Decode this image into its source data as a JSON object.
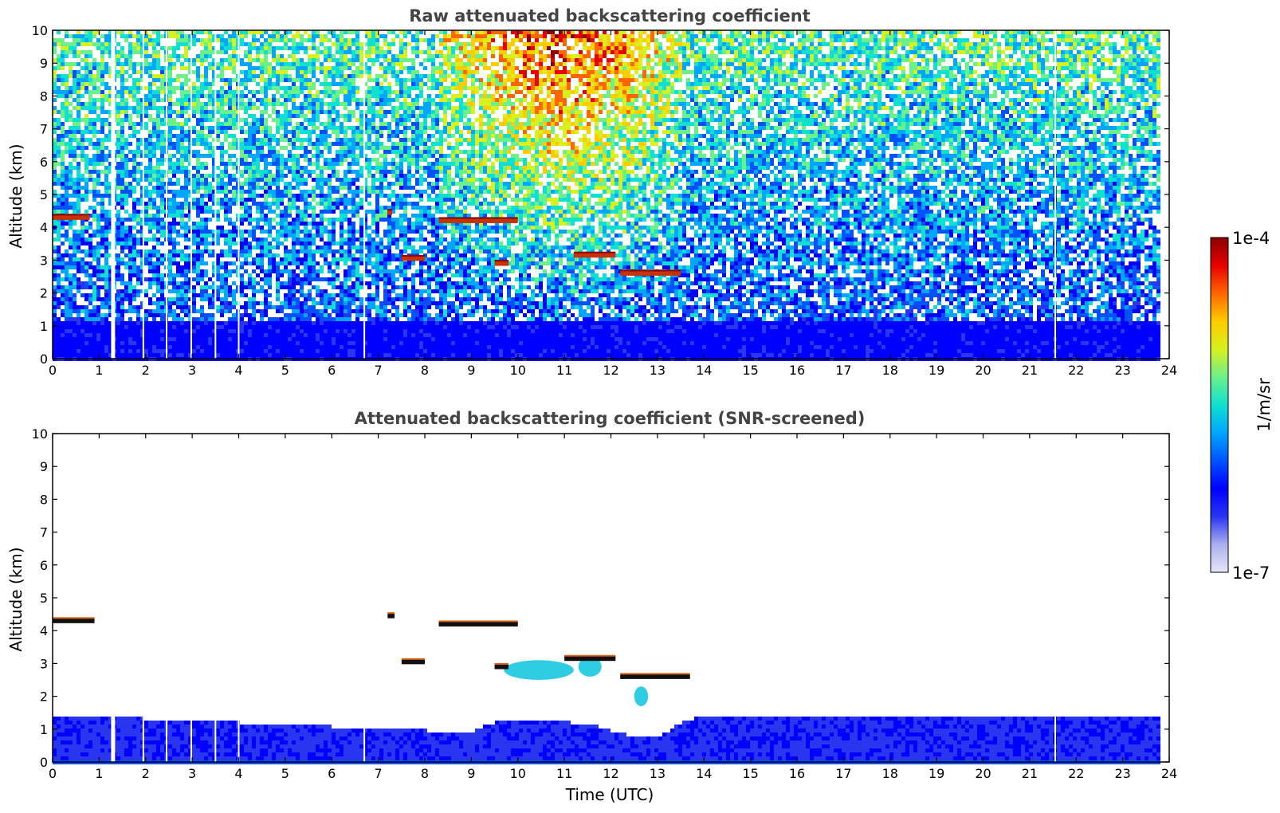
{
  "chart_data": [
    {
      "type": "heatmap",
      "title": "Raw attenuated backscattering coefficient",
      "xlabel": "",
      "ylabel": "Altitude (km)",
      "xlim": [
        0,
        24
      ],
      "ylim": [
        0,
        10
      ],
      "xticks": [
        0,
        1,
        2,
        3,
        4,
        5,
        6,
        7,
        8,
        9,
        10,
        11,
        12,
        13,
        14,
        15,
        16,
        17,
        18,
        19,
        20,
        21,
        22,
        23,
        24
      ],
      "yticks": [
        0,
        1,
        2,
        3,
        4,
        5,
        6,
        7,
        8,
        9,
        10
      ],
      "data_end_time": 23.8,
      "missing_profiles_utc": [
        1.3,
        1.95,
        2.45,
        2.98,
        3.5,
        4.0,
        6.7,
        21.55
      ],
      "cloud_layers": [
        {
          "t_start": 0.0,
          "t_end": 0.8,
          "altitude_km": 4.3
        },
        {
          "t_start": 7.2,
          "t_end": 7.3,
          "altitude_km": 4.45
        },
        {
          "t_start": 7.5,
          "t_end": 8.0,
          "altitude_km": 3.05
        },
        {
          "t_start": 8.3,
          "t_end": 10.0,
          "altitude_km": 4.2
        },
        {
          "t_start": 9.5,
          "t_end": 9.8,
          "altitude_km": 2.9
        },
        {
          "t_start": 11.2,
          "t_end": 12.1,
          "altitude_km": 3.15
        },
        {
          "t_start": 12.2,
          "t_end": 13.5,
          "altitude_km": 2.6
        }
      ],
      "note": "noisy signal; enhanced solar background between 8.3 and 13.5 UTC"
    },
    {
      "type": "heatmap",
      "title": "Attenuated backscattering coefficient (SNR-screened)",
      "xlabel": "Time (UTC)",
      "ylabel": "Altitude (km)",
      "xlim": [
        0,
        24
      ],
      "ylim": [
        0,
        10
      ],
      "xticks": [
        0,
        1,
        2,
        3,
        4,
        5,
        6,
        7,
        8,
        9,
        10,
        11,
        12,
        13,
        14,
        15,
        16,
        17,
        18,
        19,
        20,
        21,
        22,
        23,
        24
      ],
      "yticks": [
        0,
        1,
        2,
        3,
        4,
        5,
        6,
        7,
        8,
        9,
        10
      ],
      "data_end_time": 23.8,
      "missing_profiles_utc": [
        1.3,
        1.95,
        2.45,
        2.98,
        3.5,
        4.0,
        6.7,
        21.55
      ],
      "boundary_layer_top_km": [
        [
          0,
          1.5
        ],
        [
          8.3,
          1.0
        ],
        [
          8.8,
          0.9
        ],
        [
          9.5,
          1.3
        ],
        [
          10.5,
          1.35
        ],
        [
          11.5,
          1.2
        ],
        [
          12.3,
          0.9
        ],
        [
          13.0,
          0.8
        ],
        [
          13.5,
          1.3
        ],
        [
          14,
          1.45
        ],
        [
          24,
          1.45
        ]
      ],
      "cloud_layers": [
        {
          "t_start": 0.0,
          "t_end": 0.9,
          "altitude_km": 4.3
        },
        {
          "t_start": 7.2,
          "t_end": 7.35,
          "altitude_km": 4.45
        },
        {
          "t_start": 7.5,
          "t_end": 8.0,
          "altitude_km": 3.05
        },
        {
          "t_start": 8.3,
          "t_end": 10.0,
          "altitude_km": 4.2
        },
        {
          "t_start": 9.5,
          "t_end": 9.8,
          "altitude_km": 2.9
        },
        {
          "t_start": 11.0,
          "t_end": 12.1,
          "altitude_km": 3.15
        },
        {
          "t_start": 12.2,
          "t_end": 13.7,
          "altitude_km": 2.6
        }
      ],
      "aerosol_patches": [
        {
          "t_start": 9.7,
          "t_end": 11.2,
          "altitude_km": 2.8
        },
        {
          "t_start": 11.3,
          "t_end": 11.8,
          "altitude_km": 2.9
        },
        {
          "t_start": 12.5,
          "t_end": 12.8,
          "altitude_km": 2.0
        }
      ]
    }
  ],
  "colorbar": {
    "max_label": "1e-4",
    "min_label": "1e-7",
    "unit_label": "1/m/sr",
    "colors": [
      "#e6e6fa",
      "#aab0f0",
      "#2a35f0",
      "#0000ff",
      "#0052ff",
      "#00a6ff",
      "#10e0d0",
      "#6cf08a",
      "#d8f020",
      "#ffcc00",
      "#ff6600",
      "#e60000",
      "#8b0000"
    ]
  }
}
